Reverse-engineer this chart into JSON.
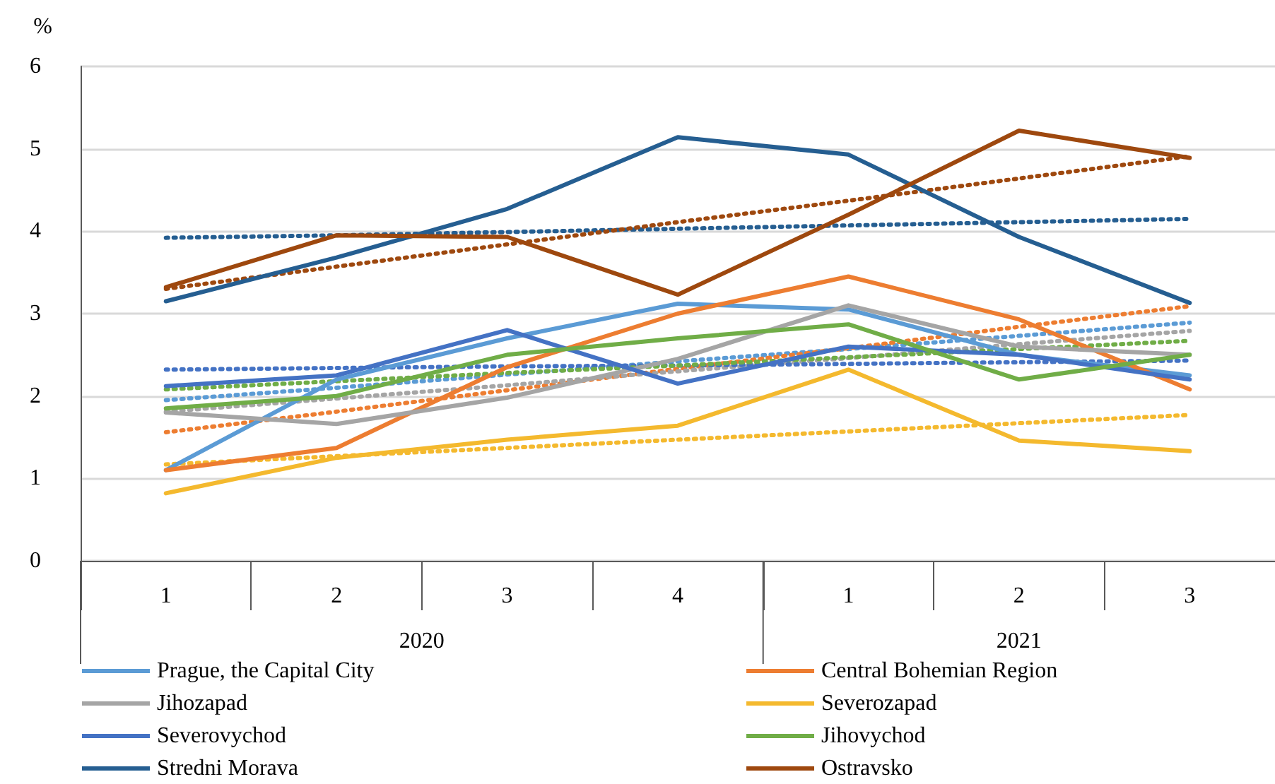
{
  "chart_data": {
    "type": "line",
    "ylabel": "%",
    "categories": [
      "1",
      "2",
      "3",
      "4",
      "1",
      "2",
      "3"
    ],
    "annotations": [
      "2020",
      "2021"
    ],
    "ylim": [
      0,
      6
    ],
    "yticks": [
      0,
      1,
      2,
      3,
      4,
      5,
      6
    ],
    "grid": "y",
    "legend": "bottom",
    "marker": "none",
    "series": [
      {
        "name": "Prague, the Capital City",
        "color": "#5b9bd5",
        "line_style": "solid",
        "values": [
          1.1,
          2.2,
          2.7,
          3.12,
          3.05,
          2.5,
          2.25
        ]
      },
      {
        "name": "Central Bohemian Region",
        "color": "#ed7d31",
        "line_style": "solid",
        "values": [
          1.1,
          1.37,
          2.35,
          3.0,
          3.45,
          2.93,
          2.08
        ]
      },
      {
        "name": "Jihozapad",
        "color": "#a5a5a5",
        "line_style": "solid",
        "values": [
          1.8,
          1.66,
          1.98,
          2.45,
          3.1,
          2.6,
          2.5
        ]
      },
      {
        "name": "Severozapad",
        "color": "#f4b92e",
        "line_style": "solid",
        "values": [
          0.82,
          1.25,
          1.47,
          1.64,
          2.32,
          1.46,
          1.33
        ]
      },
      {
        "name": "Severovychod",
        "color": "#4472c4",
        "line_style": "solid",
        "values": [
          2.12,
          2.25,
          2.8,
          2.15,
          2.6,
          2.5,
          2.2
        ]
      },
      {
        "name": "Jihovychod",
        "color": "#70ad47",
        "line_style": "solid",
        "values": [
          1.85,
          2.0,
          2.5,
          2.7,
          2.87,
          2.2,
          2.5
        ]
      },
      {
        "name": "Stredni Morava",
        "color": "#255e91",
        "line_style": "solid",
        "values": [
          3.15,
          3.68,
          4.27,
          5.14,
          4.93,
          3.93,
          3.13
        ]
      },
      {
        "name": "Ostravsko",
        "color": "#9e480e",
        "line_style": "solid",
        "values": [
          3.32,
          3.95,
          3.93,
          3.23,
          4.2,
          5.22,
          4.89
        ]
      },
      {
        "color": "#5b9bd5",
        "line_style": "dotted",
        "values": [
          1.95,
          2.1,
          2.26,
          2.42,
          2.57,
          2.73,
          2.89
        ]
      },
      {
        "color": "#ed7d31",
        "line_style": "dotted",
        "values": [
          1.56,
          1.81,
          2.07,
          2.33,
          2.58,
          2.84,
          3.09
        ]
      },
      {
        "color": "#a5a5a5",
        "line_style": "dotted",
        "values": [
          1.81,
          1.97,
          2.13,
          2.3,
          2.46,
          2.63,
          2.79
        ]
      },
      {
        "color": "#f4b92e",
        "line_style": "dotted",
        "values": [
          1.17,
          1.27,
          1.37,
          1.47,
          1.57,
          1.67,
          1.77
        ]
      },
      {
        "color": "#4472c4",
        "line_style": "dotted",
        "values": [
          2.32,
          2.34,
          2.36,
          2.37,
          2.39,
          2.41,
          2.43
        ]
      },
      {
        "color": "#70ad47",
        "line_style": "dotted",
        "values": [
          2.08,
          2.18,
          2.28,
          2.37,
          2.47,
          2.57,
          2.67
        ]
      },
      {
        "color": "#255e91",
        "line_style": "dotted",
        "values": [
          3.92,
          3.95,
          3.99,
          4.03,
          4.07,
          4.11,
          4.15
        ]
      },
      {
        "color": "#9e480e",
        "line_style": "dotted",
        "values": [
          3.3,
          3.57,
          3.84,
          4.11,
          4.37,
          4.64,
          4.91
        ]
      }
    ]
  }
}
